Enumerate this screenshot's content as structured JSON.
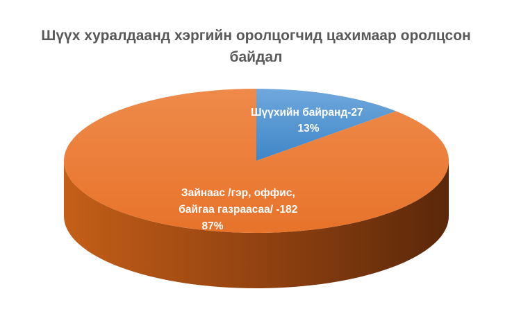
{
  "chart_data": {
    "type": "pie",
    "title": "Шүүх хуралдаанд хэргийн оролцогчид цахимаар оролцсон байдал",
    "slices": [
      {
        "label_lines": [
          "Шүүхийн байранд-27",
          "13%"
        ],
        "value": 27,
        "percent": 13,
        "color": "#5B9BD5"
      },
      {
        "label_lines": [
          "Зайнаас /гэр, оффис,",
          "байгаа газраасаа/ -182",
          "87%"
        ],
        "value": 182,
        "percent": 87,
        "color": "#ED7D31"
      }
    ],
    "style": "3d",
    "legend": "none"
  }
}
